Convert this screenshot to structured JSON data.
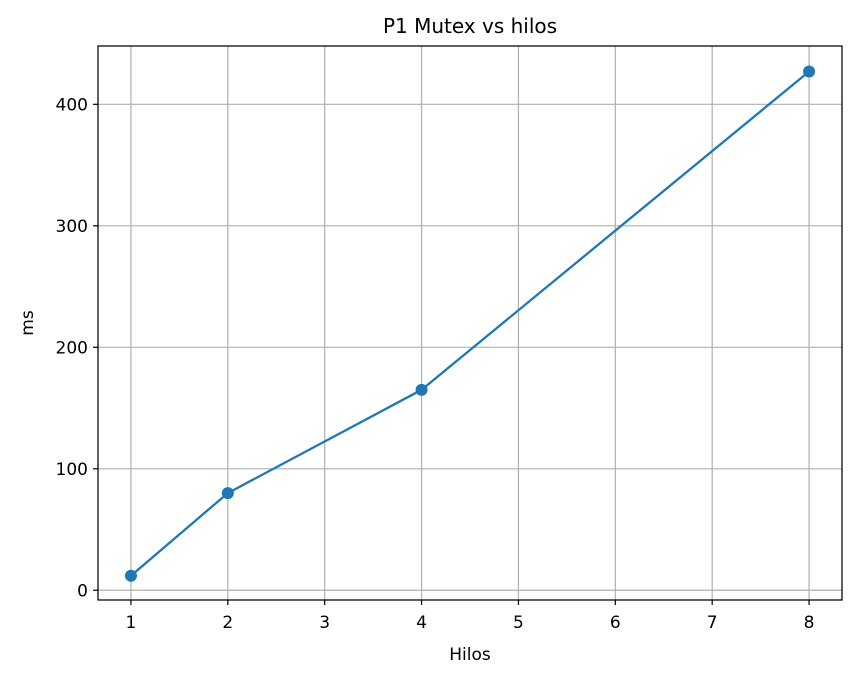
{
  "chart_data": {
    "type": "line",
    "title": "P1 Mutex vs hilos",
    "xlabel": "Hilos",
    "ylabel": "ms",
    "x": [
      1,
      2,
      4,
      8
    ],
    "series": [
      {
        "values": [
          12,
          80,
          165,
          427
        ],
        "color": "#1f77b4",
        "marker": "circle"
      }
    ],
    "xlim": [
      0.66,
      8.34
    ],
    "ylim": [
      -8,
      448
    ],
    "xticks": [
      1,
      2,
      3,
      4,
      5,
      6,
      7,
      8
    ],
    "yticks": [
      0,
      100,
      200,
      300,
      400
    ],
    "grid": true
  }
}
